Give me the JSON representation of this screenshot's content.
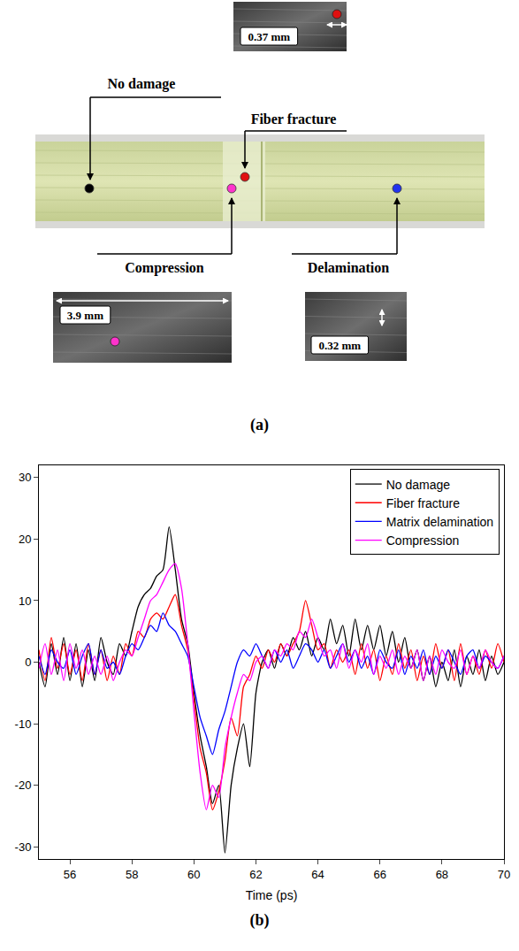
{
  "photo_panel": {
    "label": "(a)",
    "callouts": [
      {
        "label": "No damage",
        "color": "#000000"
      },
      {
        "label": "Fiber fracture",
        "color": "#e01010",
        "scale_label": "0.37 mm"
      },
      {
        "label": "Compression",
        "color": "#ff33cc",
        "scale_label": "3.9 mm"
      },
      {
        "label": "Delamination",
        "color": "#2233ee",
        "scale_label": "0.32 mm"
      }
    ]
  },
  "chart_panel_label": "(b)",
  "chart_data": {
    "type": "line",
    "x_label": "Time (ps)",
    "xlim": [
      55,
      70
    ],
    "xticks": [
      56,
      58,
      60,
      62,
      64,
      66,
      68,
      70
    ],
    "ylim": [
      -32,
      32
    ],
    "yticks": [
      -30,
      -20,
      -10,
      0,
      10,
      20,
      30
    ],
    "grid": false,
    "legend": "top right",
    "x": [
      55,
      55.2,
      55.4,
      55.6,
      55.8,
      56,
      56.2,
      56.4,
      56.6,
      56.8,
      57,
      57.2,
      57.4,
      57.6,
      57.8,
      58,
      58.2,
      58.4,
      58.6,
      58.8,
      59,
      59.2,
      59.4,
      59.6,
      59.8,
      60,
      60.2,
      60.4,
      60.6,
      60.8,
      61,
      61.2,
      61.4,
      61.6,
      61.8,
      62,
      62.2,
      62.4,
      62.6,
      62.8,
      63,
      63.2,
      63.4,
      63.6,
      63.8,
      64,
      64.2,
      64.4,
      64.6,
      64.8,
      65,
      65.2,
      65.4,
      65.6,
      65.8,
      66,
      66.2,
      66.4,
      66.6,
      66.8,
      67,
      67.2,
      67.4,
      67.6,
      67.8,
      68,
      68.2,
      68.4,
      68.6,
      68.8,
      69,
      69.2,
      69.4,
      69.6,
      69.8,
      70
    ],
    "series": [
      {
        "name": "No damage",
        "color": "#000000",
        "values": [
          0,
          -4,
          3,
          -2,
          4,
          -3,
          3,
          -4,
          2,
          -3,
          4,
          0,
          -2,
          3,
          1,
          5,
          9,
          11,
          12,
          14,
          15,
          22,
          15,
          7,
          3,
          -5,
          -12,
          -17,
          -23,
          -20,
          -31,
          -20,
          -14,
          -10,
          -17,
          -5,
          0,
          2,
          -1,
          3,
          1,
          4,
          2,
          5,
          1,
          4,
          2,
          7,
          3,
          6,
          1,
          7,
          2,
          6,
          2,
          6,
          1,
          5,
          0,
          4,
          -1,
          2,
          -3,
          1,
          -4,
          0,
          -3,
          2,
          -4,
          1,
          -2,
          2,
          -3,
          1,
          -2,
          0
        ]
      },
      {
        "name": "Fiber fracture",
        "color": "#ff0000",
        "values": [
          2,
          -3,
          4,
          -1,
          3,
          -2,
          2,
          -3,
          3,
          -2,
          2,
          -3,
          1,
          -2,
          3,
          1,
          5,
          4,
          7,
          8,
          7,
          9,
          11,
          6,
          2,
          -6,
          -14,
          -18,
          -24,
          -21,
          -16,
          -9,
          -12,
          -4,
          -2,
          1,
          -1,
          2,
          0,
          3,
          1,
          3,
          5,
          10,
          6,
          2,
          3,
          -1,
          2,
          0,
          2,
          -2,
          3,
          -1,
          2,
          -3,
          1,
          -2,
          3,
          -1,
          2,
          -3,
          1,
          -2,
          3,
          -1,
          2,
          -3,
          3,
          -2,
          1,
          -2,
          2,
          -1,
          3,
          0
        ]
      },
      {
        "name": "Matrix delamination",
        "color": "#0000ff",
        "values": [
          1,
          -2,
          2,
          0,
          -1,
          2,
          -2,
          1,
          3,
          -2,
          2,
          -1,
          0,
          -2,
          1,
          3,
          2,
          4,
          6,
          5,
          8,
          6,
          5,
          3,
          1,
          -4,
          -9,
          -12,
          -15,
          -11,
          -8,
          -4,
          0,
          2,
          1,
          3,
          1,
          -1,
          2,
          0,
          2,
          -1,
          1,
          3,
          2,
          0,
          2,
          -1,
          1,
          3,
          0,
          2,
          -1,
          1,
          -2,
          2,
          0,
          -1,
          2,
          -2,
          1,
          -1,
          2,
          -2,
          1,
          -1,
          2,
          0,
          -2,
          1,
          2,
          -1,
          1,
          0,
          -1,
          1
        ]
      },
      {
        "name": "Compression",
        "color": "#ff00ff",
        "values": [
          -1,
          3,
          -2,
          2,
          -3,
          3,
          -1,
          2,
          -2,
          1,
          -2,
          1,
          -3,
          0,
          2,
          1,
          4,
          7,
          10,
          11,
          13,
          15,
          16,
          12,
          3,
          -8,
          -18,
          -24,
          -20,
          -22,
          -14,
          -9,
          -5,
          -2,
          -3,
          0,
          1,
          -1,
          2,
          1,
          3,
          2,
          5,
          4,
          7,
          4,
          1,
          2,
          -1,
          3,
          -1,
          2,
          0,
          3,
          -2,
          1,
          -1,
          2,
          -2,
          1,
          -1,
          2,
          -3,
          1,
          -2,
          2,
          0,
          -1,
          2,
          -2,
          1,
          -1,
          2,
          0,
          -1,
          1
        ]
      }
    ]
  }
}
